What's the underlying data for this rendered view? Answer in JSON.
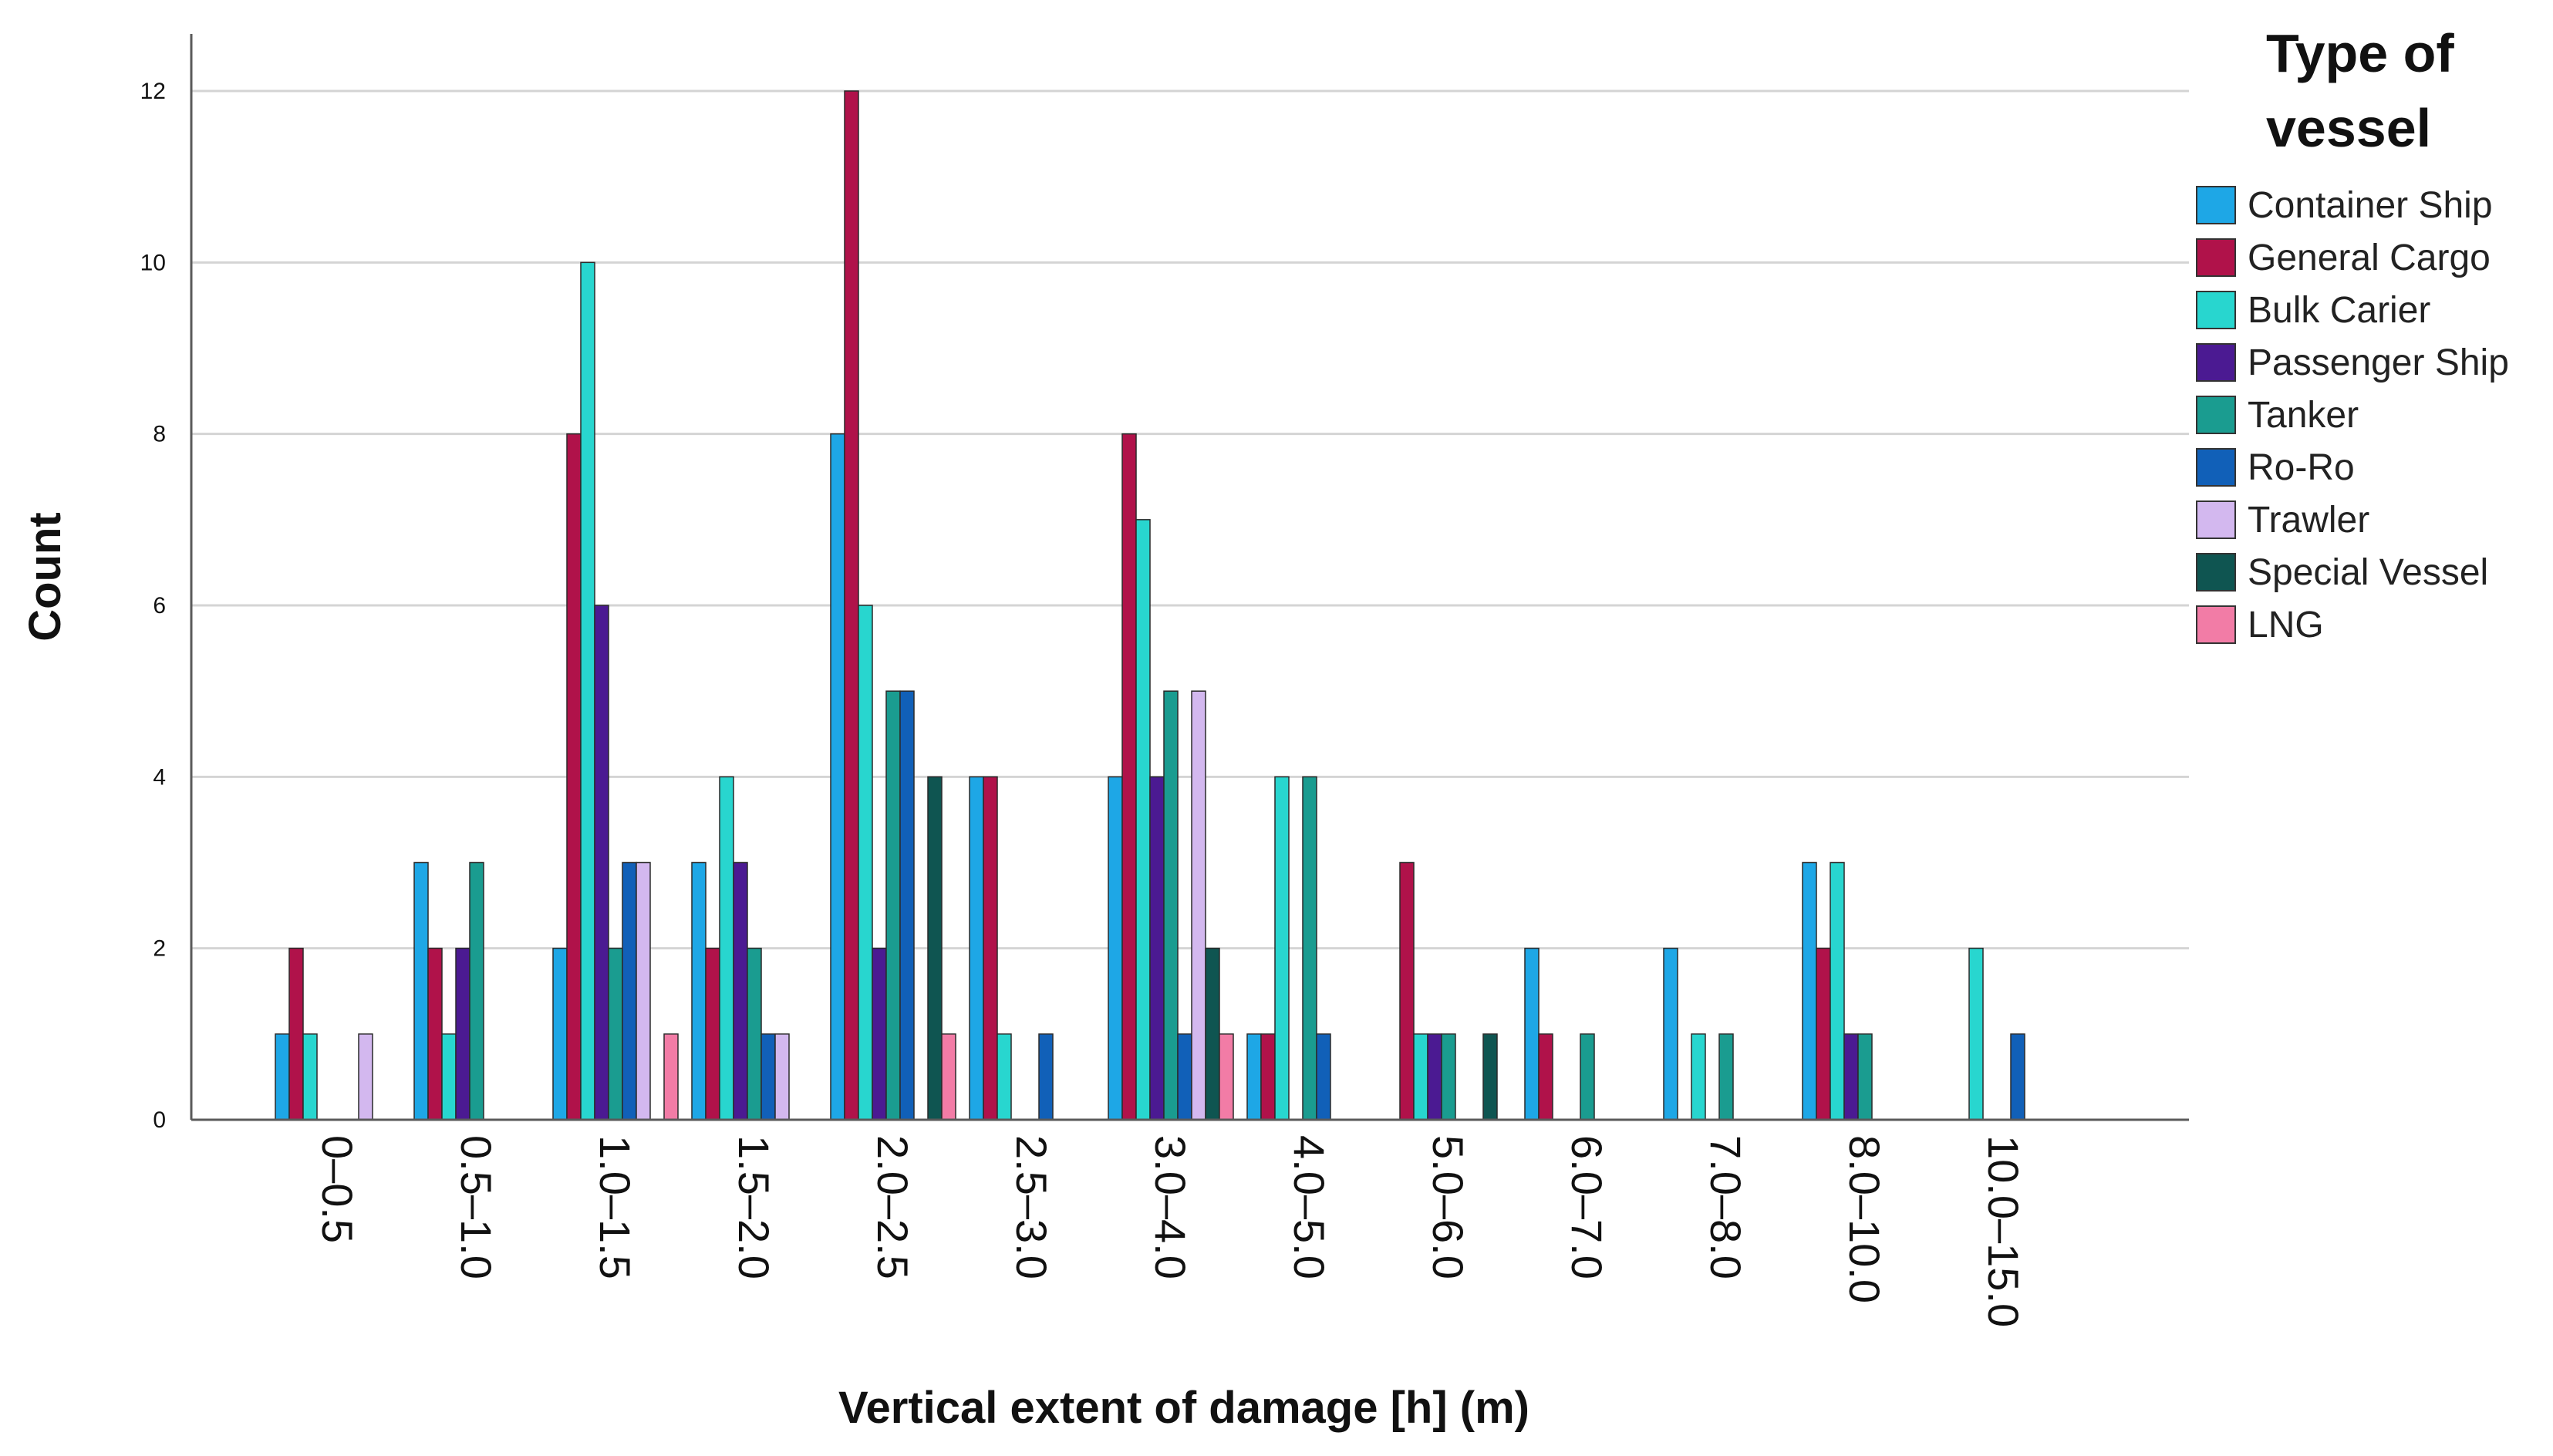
{
  "chart_data": {
    "type": "bar",
    "title": "",
    "xlabel": "Vertical extent of damage [h] (m)",
    "ylabel": "Count",
    "ylim": [
      0,
      12
    ],
    "yticks": [
      "0",
      "2",
      "4",
      "6",
      "8",
      "10",
      "12"
    ],
    "grid": true,
    "legend_title_line1": "Type of",
    "legend_title_line2": "vessel",
    "legend_position": "right",
    "categories": [
      "0–0.5",
      "0.5–1.0",
      "1.0–1.5",
      "1.5–2.0",
      "2.0–2.5",
      "2.5–3.0",
      "3.0–4.0",
      "4.0–5.0",
      "5.0–6.0",
      "6.0–7.0",
      "7.0–8.0",
      "8.0–10.0",
      "10.0–15.0"
    ],
    "series": [
      {
        "name": "Container Ship",
        "color": "#1ea7e6",
        "values": [
          1,
          3,
          2,
          3,
          8,
          4,
          4,
          1,
          0,
          2,
          2,
          3,
          0
        ]
      },
      {
        "name": "General Cargo",
        "color": "#b0124a",
        "values": [
          2,
          2,
          8,
          2,
          12,
          4,
          8,
          1,
          3,
          1,
          0,
          2,
          0
        ]
      },
      {
        "name": "Bulk Carier",
        "color": "#28d6cf",
        "values": [
          1,
          1,
          10,
          4,
          6,
          1,
          7,
          4,
          1,
          0,
          1,
          3,
          2
        ]
      },
      {
        "name": "Passenger Ship",
        "color": "#4b1a92",
        "values": [
          0,
          2,
          6,
          3,
          2,
          0,
          4,
          0,
          1,
          0,
          0,
          1,
          0
        ]
      },
      {
        "name": "Tanker",
        "color": "#1a9c90",
        "values": [
          0,
          3,
          2,
          2,
          5,
          0,
          5,
          4,
          1,
          1,
          1,
          1,
          0
        ]
      },
      {
        "name": "Ro-Ro",
        "color": "#1160b8",
        "values": [
          0,
          0,
          3,
          1,
          5,
          1,
          1,
          1,
          0,
          0,
          0,
          0,
          1
        ]
      },
      {
        "name": "Trawler",
        "color": "#d3b8ef",
        "values": [
          1,
          0,
          3,
          1,
          0,
          0,
          5,
          0,
          0,
          0,
          0,
          0,
          0
        ]
      },
      {
        "name": "Special Vessel",
        "color": "#0f5551",
        "values": [
          0,
          0,
          0,
          0,
          4,
          0,
          2,
          0,
          1,
          0,
          0,
          0,
          0
        ]
      },
      {
        "name": "LNG",
        "color": "#f27ca6",
        "values": [
          0,
          0,
          1,
          0,
          1,
          0,
          1,
          0,
          0,
          0,
          0,
          0,
          0
        ]
      }
    ]
  }
}
